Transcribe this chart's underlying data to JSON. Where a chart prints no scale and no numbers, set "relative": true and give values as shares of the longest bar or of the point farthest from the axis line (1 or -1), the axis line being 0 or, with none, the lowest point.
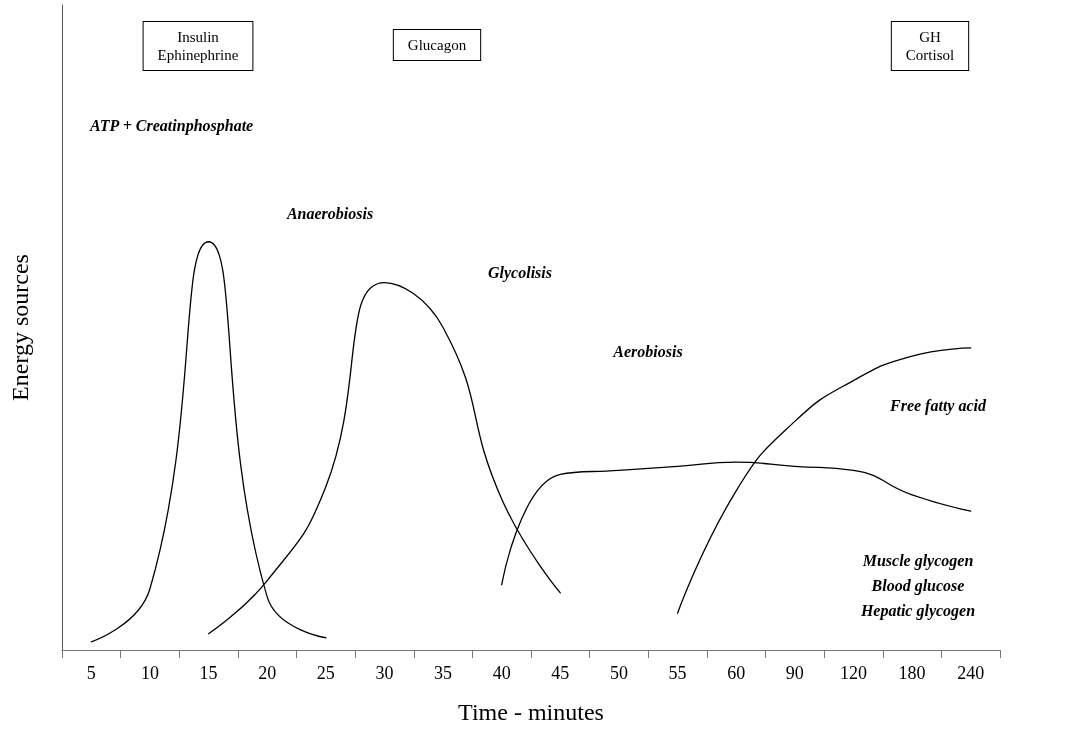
{
  "chart_data": {
    "type": "line",
    "relative": true,
    "xlabel": "Time - minutes",
    "ylabel": "Energy sources",
    "categories": [
      "5",
      "10",
      "15",
      "20",
      "25",
      "30",
      "35",
      "40",
      "45",
      "50",
      "55",
      "60",
      "90",
      "120",
      "180",
      "240"
    ],
    "series": [
      {
        "color": "#000000",
        "values": [
          0.02,
          0.15,
          1,
          0.13,
          0.03,
          null,
          null,
          null,
          null,
          null,
          null,
          null,
          null,
          null,
          null,
          null
        ]
      },
      {
        "color": "#000000",
        "values": [
          null,
          null,
          0.04,
          0.17,
          0.4,
          0.9,
          0.79,
          0.37,
          0.14,
          null,
          null,
          null,
          null,
          null,
          null,
          null
        ]
      },
      {
        "color": "#000000",
        "values": [
          null,
          null,
          null,
          null,
          null,
          null,
          null,
          0.16,
          0.43,
          0.44,
          0.45,
          0.46,
          0.45,
          0.44,
          0.38,
          0.34
        ]
      },
      {
        "color": "#000000",
        "values": [
          null,
          null,
          null,
          null,
          null,
          null,
          null,
          null,
          null,
          null,
          0.09,
          0.39,
          0.56,
          0.66,
          0.72,
          0.74
        ]
      }
    ],
    "annotations": [
      "Insulin\nEphinephrine",
      "Glucagon",
      "GH\nCortisol",
      "ATP + Creatinphosphate",
      "Anaerobiosis",
      "Glycolisis",
      "Aerobiosis",
      "Free fatty acid",
      "Muscle glycogen\nBlood glucose\nHepatic glycogen"
    ],
    "tick_labels": "x",
    "grid": false,
    "marker": "none",
    "line_style": "solid"
  }
}
